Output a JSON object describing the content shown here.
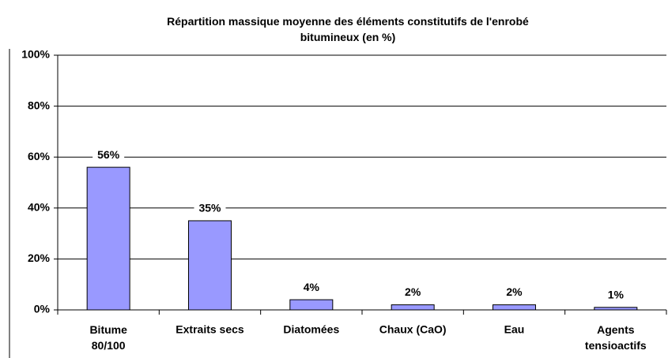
{
  "chart_data": {
    "type": "bar",
    "title": "Répartition massique moyenne des éléments constitutifs de l'enrobé\nbitumineux (en %)",
    "categories": [
      "Bitume\n80/100",
      "Extraits secs",
      "Diatomées",
      "Chaux (CaO)",
      "Eau",
      "Agents\ntensioactifs"
    ],
    "values": [
      56,
      35,
      4,
      2,
      2,
      1
    ],
    "value_labels": [
      "56%",
      "35%",
      "4%",
      "2%",
      "2%",
      "1%"
    ],
    "color": "#9999ff",
    "ylim": [
      0,
      100
    ],
    "yticks": [
      {
        "value": 0,
        "label": "0%"
      },
      {
        "value": 20,
        "label": "20%"
      },
      {
        "value": 40,
        "label": "40%"
      },
      {
        "value": 60,
        "label": "60%"
      },
      {
        "value": 80,
        "label": "80%"
      },
      {
        "value": 100,
        "label": "100%"
      }
    ],
    "grid": true
  }
}
